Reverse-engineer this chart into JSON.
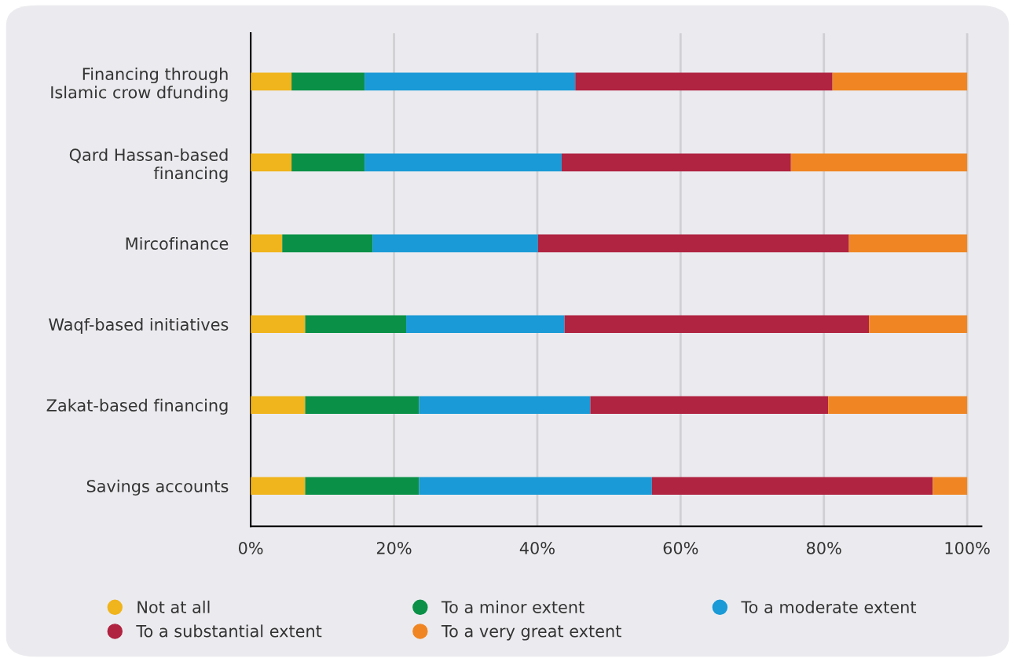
{
  "chart_data": {
    "type": "bar",
    "orientation": "horizontal",
    "stacked": true,
    "categories": [
      "Financing through\nIslamic crow dfunding",
      "Qard Hassan-based\nfinancing",
      "Mircofinance",
      "Waqf-based initiatives",
      "Zakat-based financing",
      "Savings accounts"
    ],
    "series": [
      {
        "name": "Not at all",
        "color": "#f0b41c",
        "values": [
          5.7,
          5.7,
          4.4,
          7.6,
          7.6,
          7.6
        ]
      },
      {
        "name": "To a minor extent",
        "color": "#0a9147",
        "values": [
          10.2,
          10.2,
          12.6,
          14.1,
          15.9,
          15.9
        ]
      },
      {
        "name": "To a moderate extent",
        "color": "#1a9ad6",
        "values": [
          29.4,
          27.5,
          23.1,
          22.1,
          23.9,
          32.5
        ]
      },
      {
        "name": "To a substantial extent",
        "color": "#b02341",
        "values": [
          35.9,
          32.0,
          43.4,
          42.5,
          33.2,
          39.2
        ]
      },
      {
        "name": "To a very great extent",
        "color": "#f08623",
        "values": [
          18.8,
          24.6,
          16.5,
          13.7,
          19.4,
          4.8
        ]
      }
    ],
    "xlim": [
      0,
      102
    ],
    "xticks": [
      {
        "value": 0,
        "label": "0%"
      },
      {
        "value": 20,
        "label": "20%"
      },
      {
        "value": 40,
        "label": "40%"
      },
      {
        "value": 60,
        "label": "60%"
      },
      {
        "value": 80,
        "label": "80%"
      },
      {
        "value": 100,
        "label": "100%"
      }
    ],
    "grid": "x",
    "legend": "bottom",
    "marker": "circle"
  }
}
